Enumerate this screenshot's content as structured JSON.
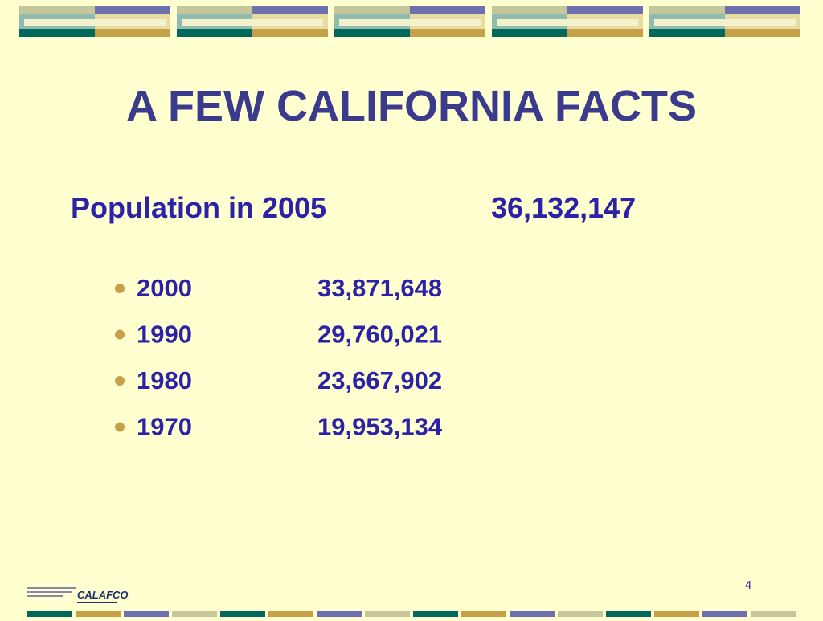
{
  "title": "A FEW CALIFORNIA FACTS",
  "headline": {
    "label": "Population in 2005",
    "value": "36,132,147"
  },
  "items": [
    {
      "year": "2000",
      "population": "33,871,648"
    },
    {
      "year": "1990",
      "population": "29,760,021"
    },
    {
      "year": "1980",
      "population": "23,667,902"
    },
    {
      "year": "1970",
      "population": "19,953,134"
    }
  ],
  "logo": "CALAFCO",
  "page_number": "4"
}
